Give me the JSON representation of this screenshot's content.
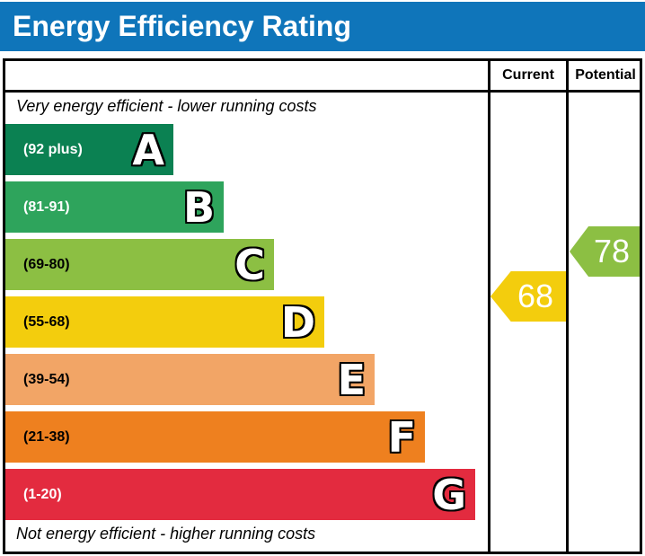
{
  "title": "Energy Efficiency Rating",
  "columns": {
    "current": "Current",
    "potential": "Potential"
  },
  "notes": {
    "top": "Very energy efficient - lower running costs",
    "bottom": "Not energy efficient - higher running costs"
  },
  "colors": {
    "title_bar": "#0f75ba",
    "border": "#000000",
    "current_arrow": "#f3cd0d",
    "potential_arrow": "#8cbf43"
  },
  "chart_data": {
    "type": "bar",
    "title": "Energy Efficiency Rating",
    "bands": [
      {
        "letter": "A",
        "range_label": "(92 plus)",
        "min": 92,
        "max": 100,
        "color": "#0b8152",
        "label_color": "#ffffff"
      },
      {
        "letter": "B",
        "range_label": "(81-91)",
        "min": 81,
        "max": 91,
        "color": "#2ea45c",
        "label_color": "#ffffff"
      },
      {
        "letter": "C",
        "range_label": "(69-80)",
        "min": 69,
        "max": 80,
        "color": "#8cbf43",
        "label_color": "#000000"
      },
      {
        "letter": "D",
        "range_label": "(55-68)",
        "min": 55,
        "max": 68,
        "color": "#f3cd0d",
        "label_color": "#000000"
      },
      {
        "letter": "E",
        "range_label": "(39-54)",
        "min": 39,
        "max": 54,
        "color": "#f2a566",
        "label_color": "#000000"
      },
      {
        "letter": "F",
        "range_label": "(21-38)",
        "min": 21,
        "max": 38,
        "color": "#ee801f",
        "label_color": "#000000"
      },
      {
        "letter": "G",
        "range_label": "(1-20)",
        "min": 1,
        "max": 20,
        "color": "#e32b3f",
        "label_color": "#ffffff"
      }
    ],
    "current": {
      "value": 68,
      "band": "D",
      "color": "#f3cd0d"
    },
    "potential": {
      "value": 78,
      "band": "C",
      "color": "#8cbf43"
    }
  }
}
